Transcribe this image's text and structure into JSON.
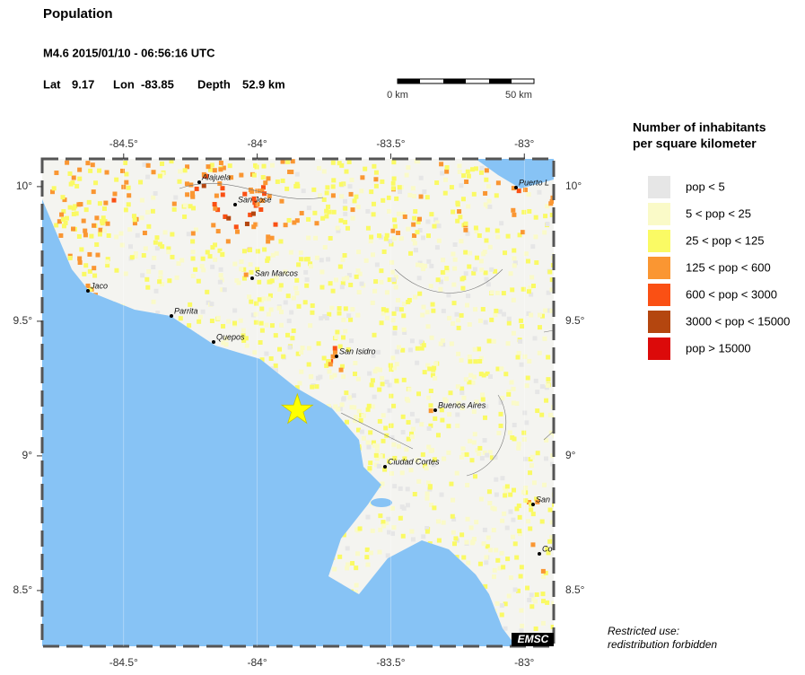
{
  "header": {
    "title": "Population",
    "event": "M4.6  2015/01/10 - 06:56:16 UTC",
    "lat_label": "Lat",
    "lat": 9.17,
    "lon_label": "Lon",
    "lon": -83.85,
    "depth_label": "Depth",
    "depth": "52.9 km"
  },
  "scale_bar": {
    "start": "0 km",
    "end": "50 km"
  },
  "map": {
    "xlim": [
      -84.805,
      -82.89
    ],
    "ylim": [
      8.293,
      10.103
    ],
    "xticks": [
      {
        "value": -84.5,
        "label": "-84.5°"
      },
      {
        "value": -84,
        "label": "-84°"
      },
      {
        "value": -83.5,
        "label": "-83.5°"
      },
      {
        "value": -83,
        "label": "-83°"
      }
    ],
    "yticks": [
      {
        "value": 10,
        "label": "10°"
      },
      {
        "value": 9.5,
        "label": "9.5°"
      },
      {
        "value": 9,
        "label": "9°"
      },
      {
        "value": 8.5,
        "label": "8.5°"
      }
    ],
    "cities": [
      "Alajuela",
      "San Jose",
      "Puerto L",
      "San Marcos",
      "Jaco",
      "Parrita",
      "Quepos",
      "San Isidro",
      "Buenos Aires",
      "Ciudad Cortes",
      "San",
      "Co"
    ],
    "badge": "EMSC"
  },
  "legend": {
    "title": [
      "Number of inhabitants",
      "per square kilometer"
    ],
    "items": [
      {
        "label": "pop < 5",
        "color": "#e6e6e6"
      },
      {
        "label": "5 < pop < 25",
        "color": "#fafac8"
      },
      {
        "label": "25 < pop < 125",
        "color": "#fafa64"
      },
      {
        "label": "125 < pop < 600",
        "color": "#fa9632"
      },
      {
        "label": "600 < pop < 3000",
        "color": "#fa5014"
      },
      {
        "label": "3000 < pop < 15000",
        "color": "#b4460f"
      },
      {
        "label": "pop > 15000",
        "color": "#dc0a0a"
      }
    ]
  },
  "note": [
    "Restricted use:",
    "redistribution forbidden"
  ]
}
